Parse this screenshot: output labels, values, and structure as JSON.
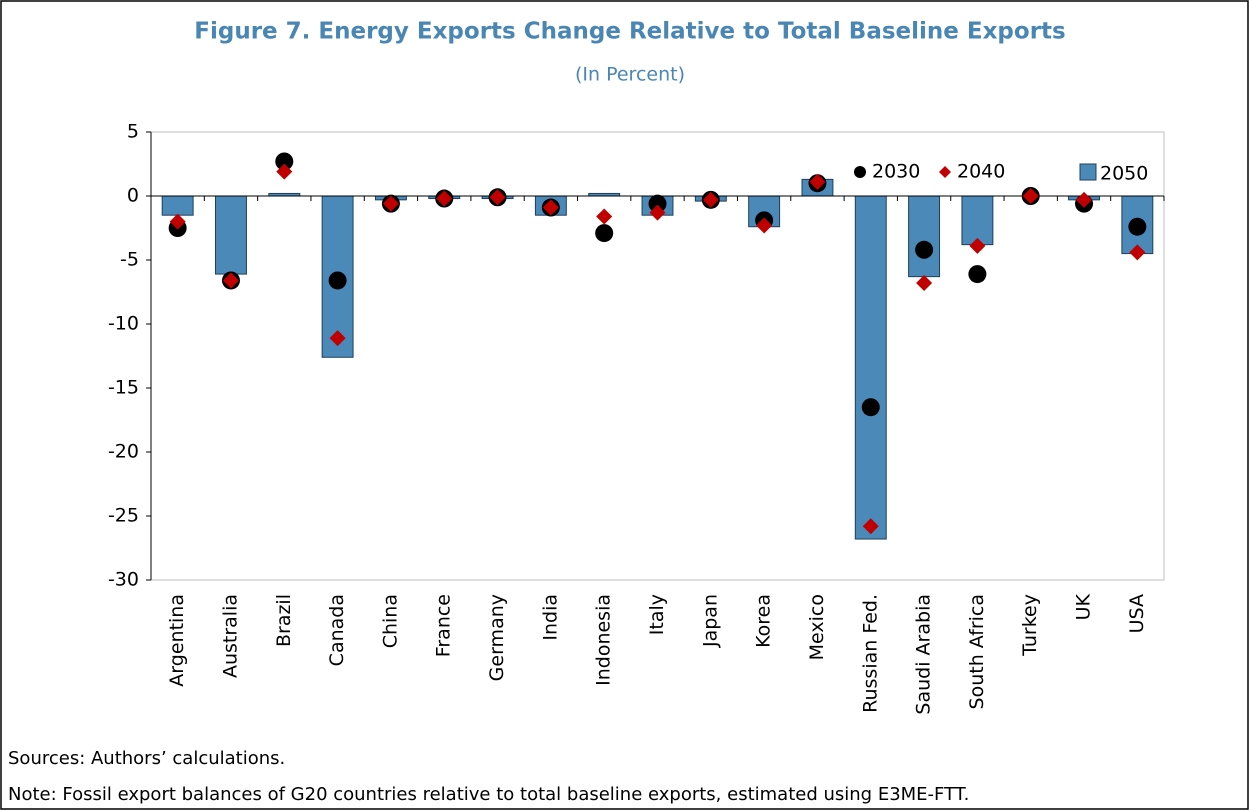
{
  "chart_data": {
    "type": "bar",
    "title": "Figure 7. Energy Exports Change Relative to Total Baseline Exports",
    "subtitle": "(In Percent)",
    "categories": [
      "Argentina",
      "Australia",
      "Brazil",
      "Canada",
      "China",
      "France",
      "Germany",
      "India",
      "Indonesia",
      "Italy",
      "Japan",
      "Korea",
      "Mexico",
      "Russian Fed.",
      "Saudi Arabia",
      "South Africa",
      "Turkey",
      "UK",
      "USA"
    ],
    "series": [
      {
        "name": "2030",
        "color": "#000000",
        "marker": "circle",
        "values": [
          -2.5,
          -6.6,
          2.7,
          -6.6,
          -0.6,
          -0.2,
          -0.1,
          -0.9,
          -2.9,
          -0.6,
          -0.3,
          -1.9,
          1.0,
          -16.5,
          -4.2,
          -6.1,
          0.0,
          -0.6,
          -2.4
        ]
      },
      {
        "name": "2040",
        "color": "#c00000",
        "marker": "diamond",
        "values": [
          -2.0,
          -6.6,
          1.9,
          -11.1,
          -0.6,
          -0.2,
          -0.1,
          -0.9,
          -1.6,
          -1.3,
          -0.3,
          -2.3,
          1.1,
          -25.8,
          -6.8,
          -3.9,
          0.0,
          -0.3,
          -4.4
        ]
      },
      {
        "name": "2050",
        "color": "#4a89b8",
        "marker": "bar",
        "values": [
          -1.5,
          -6.1,
          0.2,
          -12.6,
          -0.3,
          -0.2,
          -0.2,
          -1.5,
          0.2,
          -1.5,
          -0.4,
          -2.4,
          1.3,
          -26.8,
          -6.3,
          -3.8,
          0.0,
          -0.3,
          -4.5
        ]
      }
    ],
    "ylim": [
      -30,
      5
    ],
    "yticks": [
      5,
      0,
      -5,
      -10,
      -15,
      -20,
      -25,
      -30
    ],
    "legend": "upper right",
    "sources": "Sources: Authors’ calculations.",
    "note": "Note: Fossil export balances of G20 countries relative to total baseline exports, estimated using E3ME-FTT."
  }
}
